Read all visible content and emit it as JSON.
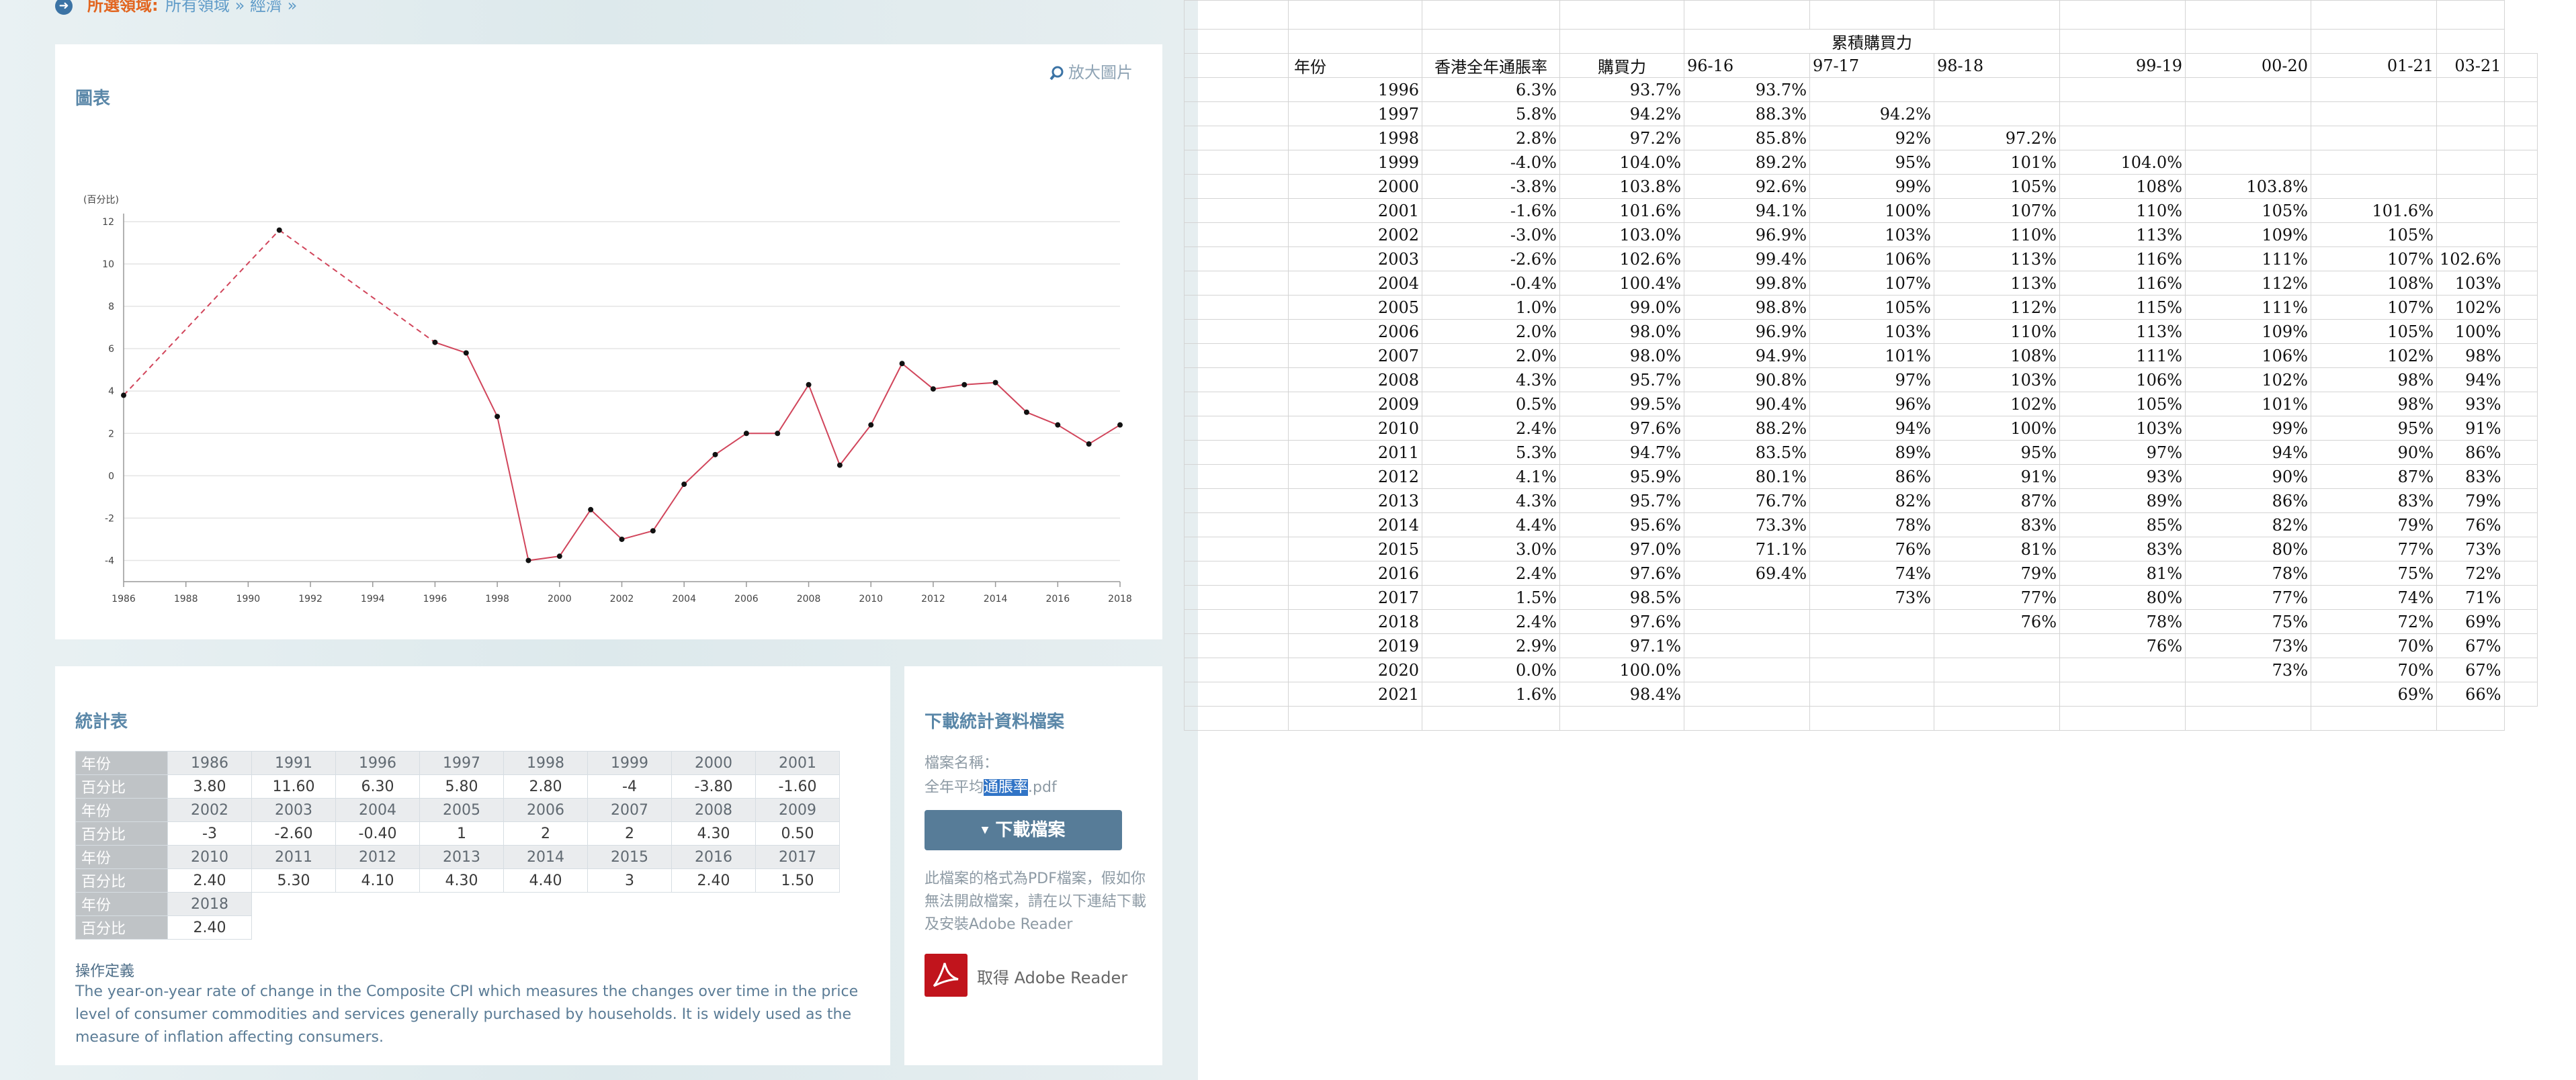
{
  "breadcrumb": {
    "label": "所選領域:",
    "path": "所有領域 » 經濟 »"
  },
  "chart_card": {
    "title": "圖表",
    "enlarge": "放大圖片"
  },
  "chart_data": {
    "type": "line",
    "ylabel": "(百分比)",
    "ylim": [
      -5,
      12
    ],
    "yticks": [
      -4,
      -2,
      0,
      2,
      4,
      6,
      8,
      10,
      12
    ],
    "xlim": [
      1986,
      2018
    ],
    "xticks": [
      "1986",
      "1988",
      "1990",
      "1992",
      "1994",
      "1996",
      "1998",
      "2000",
      "2002",
      "2004",
      "2006",
      "2008",
      "2010",
      "2012",
      "2014",
      "2016",
      "2018"
    ],
    "grid": true,
    "dashed_segments": [
      [
        1986,
        1991
      ],
      [
        1991,
        1996
      ]
    ],
    "line_color": "#d1455b",
    "x": [
      1986,
      1991,
      1996,
      1997,
      1998,
      1999,
      2000,
      2001,
      2002,
      2003,
      2004,
      2005,
      2006,
      2007,
      2008,
      2009,
      2010,
      2011,
      2012,
      2013,
      2014,
      2015,
      2016,
      2017,
      2018
    ],
    "values": [
      3.8,
      11.6,
      6.3,
      5.8,
      2.8,
      -4,
      -3.8,
      -1.6,
      -3,
      -2.6,
      -0.4,
      1,
      2,
      2,
      4.3,
      0.5,
      2.4,
      5.3,
      4.1,
      4.3,
      4.4,
      3,
      2.4,
      1.5,
      2.4
    ]
  },
  "stat_card": {
    "title": "統計表",
    "row_year_label": "年份",
    "row_pct_label": "百分比",
    "rows": [
      {
        "years": [
          "1986",
          "1991",
          "1996",
          "1997",
          "1998",
          "1999",
          "2000",
          "2001"
        ],
        "values": [
          "3.80",
          "11.60",
          "6.30",
          "5.80",
          "2.80",
          "-4",
          "-3.80",
          "-1.60"
        ]
      },
      {
        "years": [
          "2002",
          "2003",
          "2004",
          "2005",
          "2006",
          "2007",
          "2008",
          "2009"
        ],
        "values": [
          "-3",
          "-2.60",
          "-0.40",
          "1",
          "2",
          "2",
          "4.30",
          "0.50"
        ]
      },
      {
        "years": [
          "2010",
          "2011",
          "2012",
          "2013",
          "2014",
          "2015",
          "2016",
          "2017"
        ],
        "values": [
          "2.40",
          "5.30",
          "4.10",
          "4.30",
          "4.40",
          "3",
          "2.40",
          "1.50"
        ]
      },
      {
        "years": [
          "2018"
        ],
        "values": [
          "2.40"
        ]
      }
    ],
    "opdef_title": "操作定義",
    "opdef_text": "The year-on-year rate of change in the Composite CPI which measures the changes over time in the price level of consumer commodities and services generally purchased by households. It is widely used as the measure of inflation affecting consumers."
  },
  "download_card": {
    "title": "下載統計資料檔案",
    "file_label": "檔案名稱：",
    "file_prefix": "全年平均",
    "file_highlight": "通脹率",
    "file_suffix": ".pdf",
    "button": "下載檔案",
    "note": "此檔案的格式為PDF檔案，假如你無法開啟檔案，請在以下連結下載及安裝Adobe Reader",
    "adobe": "取得 Adobe Reader"
  },
  "sheet": {
    "title": "累積購買力",
    "headers": [
      "年份",
      "香港全年通脹率",
      "購買力",
      "96-16",
      "97-17",
      "98-18",
      "99-19",
      "00-20",
      "01-21",
      "03-21"
    ],
    "rows": [
      [
        "1996",
        "6.3%",
        "93.7%",
        "93.7%",
        "",
        "",
        "",
        "",
        "",
        ""
      ],
      [
        "1997",
        "5.8%",
        "94.2%",
        "88.3%",
        "94.2%",
        "",
        "",
        "",
        "",
        ""
      ],
      [
        "1998",
        "2.8%",
        "97.2%",
        "85.8%",
        "92%",
        "97.2%",
        "",
        "",
        "",
        ""
      ],
      [
        "1999",
        "-4.0%",
        "104.0%",
        "89.2%",
        "95%",
        "101%",
        "104.0%",
        "",
        "",
        ""
      ],
      [
        "2000",
        "-3.8%",
        "103.8%",
        "92.6%",
        "99%",
        "105%",
        "108%",
        "103.8%",
        "",
        ""
      ],
      [
        "2001",
        "-1.6%",
        "101.6%",
        "94.1%",
        "100%",
        "107%",
        "110%",
        "105%",
        "101.6%",
        ""
      ],
      [
        "2002",
        "-3.0%",
        "103.0%",
        "96.9%",
        "103%",
        "110%",
        "113%",
        "109%",
        "105%",
        ""
      ],
      [
        "2003",
        "-2.6%",
        "102.6%",
        "99.4%",
        "106%",
        "113%",
        "116%",
        "111%",
        "107%",
        "102.6%"
      ],
      [
        "2004",
        "-0.4%",
        "100.4%",
        "99.8%",
        "107%",
        "113%",
        "116%",
        "112%",
        "108%",
        "103%"
      ],
      [
        "2005",
        "1.0%",
        "99.0%",
        "98.8%",
        "105%",
        "112%",
        "115%",
        "111%",
        "107%",
        "102%"
      ],
      [
        "2006",
        "2.0%",
        "98.0%",
        "96.9%",
        "103%",
        "110%",
        "113%",
        "109%",
        "105%",
        "100%"
      ],
      [
        "2007",
        "2.0%",
        "98.0%",
        "94.9%",
        "101%",
        "108%",
        "111%",
        "106%",
        "102%",
        "98%"
      ],
      [
        "2008",
        "4.3%",
        "95.7%",
        "90.8%",
        "97%",
        "103%",
        "106%",
        "102%",
        "98%",
        "94%"
      ],
      [
        "2009",
        "0.5%",
        "99.5%",
        "90.4%",
        "96%",
        "102%",
        "105%",
        "101%",
        "98%",
        "93%"
      ],
      [
        "2010",
        "2.4%",
        "97.6%",
        "88.2%",
        "94%",
        "100%",
        "103%",
        "99%",
        "95%",
        "91%"
      ],
      [
        "2011",
        "5.3%",
        "94.7%",
        "83.5%",
        "89%",
        "95%",
        "97%",
        "94%",
        "90%",
        "86%"
      ],
      [
        "2012",
        "4.1%",
        "95.9%",
        "80.1%",
        "86%",
        "91%",
        "93%",
        "90%",
        "87%",
        "83%"
      ],
      [
        "2013",
        "4.3%",
        "95.7%",
        "76.7%",
        "82%",
        "87%",
        "89%",
        "86%",
        "83%",
        "79%"
      ],
      [
        "2014",
        "4.4%",
        "95.6%",
        "73.3%",
        "78%",
        "83%",
        "85%",
        "82%",
        "79%",
        "76%"
      ],
      [
        "2015",
        "3.0%",
        "97.0%",
        "71.1%",
        "76%",
        "81%",
        "83%",
        "80%",
        "77%",
        "73%"
      ],
      [
        "2016",
        "2.4%",
        "97.6%",
        "69.4%",
        "74%",
        "79%",
        "81%",
        "78%",
        "75%",
        "72%"
      ],
      [
        "2017",
        "1.5%",
        "98.5%",
        "",
        "73%",
        "77%",
        "80%",
        "77%",
        "74%",
        "71%"
      ],
      [
        "2018",
        "2.4%",
        "97.6%",
        "",
        "",
        "76%",
        "78%",
        "75%",
        "72%",
        "69%"
      ],
      [
        "2019",
        "2.9%",
        "97.1%",
        "",
        "",
        "",
        "76%",
        "73%",
        "70%",
        "67%"
      ],
      [
        "2020",
        "0.0%",
        "100.0%",
        "",
        "",
        "",
        "",
        "73%",
        "70%",
        "67%"
      ],
      [
        "2021",
        "1.6%",
        "98.4%",
        "",
        "",
        "",
        "",
        "",
        "69%",
        "66%"
      ]
    ]
  }
}
